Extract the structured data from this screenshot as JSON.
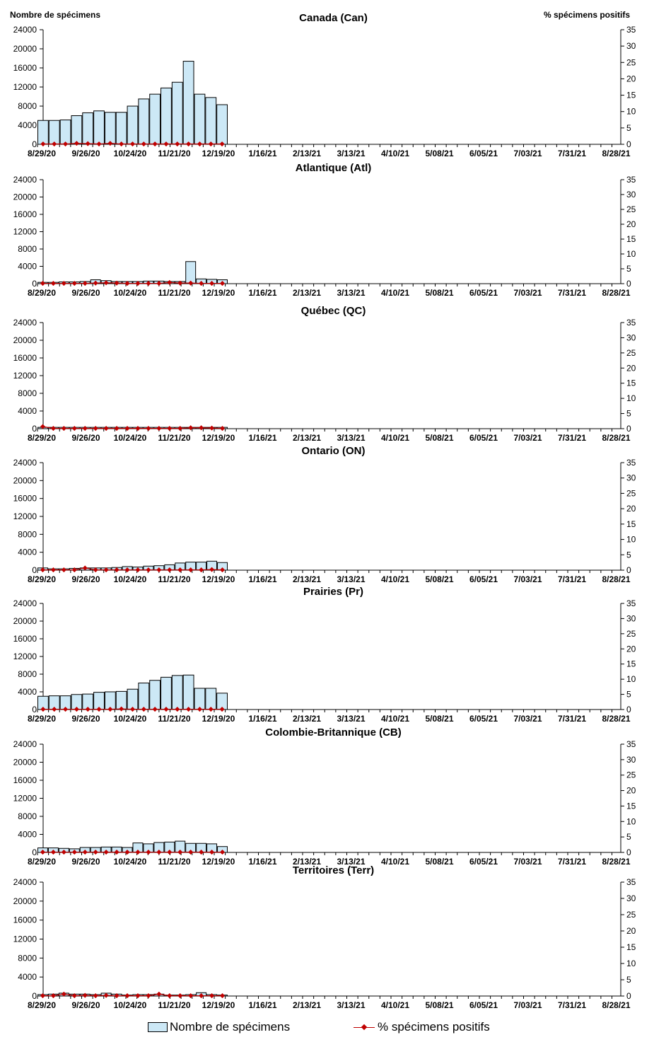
{
  "axis_labels": {
    "left": "Nombre de spécimens",
    "right": "% spécimens positifs"
  },
  "legend": {
    "bar_label": "Nombre de spécimens",
    "line_label": "% spécimens positifs"
  },
  "colors": {
    "bar_fill": "#cce8f6",
    "bar_stroke": "#000000",
    "line": "#c00000"
  },
  "chart_data": [
    {
      "type": "bar",
      "title": "Canada (Can)",
      "x_tick_labels": [
        "8/29/20",
        "9/26/20",
        "10/24/20",
        "11/21/20",
        "12/19/20",
        "1/16/21",
        "2/13/21",
        "3/13/21",
        "4/10/21",
        "5/08/21",
        "6/05/21",
        "7/03/21",
        "7/31/21",
        "8/28/21"
      ],
      "y_ticks": [
        0,
        4000,
        8000,
        12000,
        16000,
        20000,
        24000
      ],
      "y2_ticks": [
        0,
        5,
        10,
        15,
        20,
        25,
        30,
        35
      ],
      "ylim": [
        0,
        24000
      ],
      "y2lim": [
        0,
        35
      ],
      "series": [
        {
          "name": "Nombre de spécimens",
          "values": [
            5000,
            5000,
            5100,
            6000,
            6600,
            7000,
            6700,
            6700,
            8000,
            9500,
            10500,
            11800,
            13000,
            17400,
            10500,
            9800,
            8300
          ]
        },
        {
          "name": "% spécimens positifs",
          "values": [
            0.1,
            0.1,
            0.1,
            0.3,
            0.2,
            0.1,
            0.3,
            0.1,
            0.1,
            0.1,
            0.1,
            0.1,
            0.1,
            0.1,
            0.1,
            0.1,
            0.1
          ]
        }
      ]
    },
    {
      "type": "bar",
      "title": "Atlantique (Atl)",
      "x_tick_labels": [
        "8/29/20",
        "9/26/20",
        "10/24/20",
        "11/21/20",
        "12/19/20",
        "1/16/21",
        "2/13/21",
        "3/13/21",
        "4/10/21",
        "5/08/21",
        "6/05/21",
        "7/03/21",
        "7/31/21",
        "8/28/21"
      ],
      "y_ticks": [
        0,
        4000,
        8000,
        12000,
        16000,
        20000,
        24000
      ],
      "y2_ticks": [
        0,
        5,
        10,
        15,
        20,
        25,
        30,
        35
      ],
      "ylim": [
        0,
        24000
      ],
      "y2lim": [
        0,
        35
      ],
      "series": [
        {
          "name": "Nombre de spécimens",
          "values": [
            300,
            300,
            400,
            400,
            500,
            900,
            700,
            500,
            500,
            500,
            600,
            600,
            500,
            500,
            5100,
            1100,
            1000,
            900
          ]
        },
        {
          "name": "% spécimens positifs",
          "values": [
            0.1,
            0.1,
            0.1,
            0.1,
            0.1,
            0.2,
            0.3,
            0.2,
            0.1,
            0.1,
            0.1,
            0.1,
            0.4,
            0.2,
            0.2,
            0.1,
            0.1,
            0.1
          ]
        }
      ]
    },
    {
      "type": "bar",
      "title": "Québec (QC)",
      "x_tick_labels": [
        "8/29/20",
        "9/26/20",
        "10/24/20",
        "11/21/20",
        "12/19/20",
        "1/16/21",
        "2/13/21",
        "3/13/21",
        "4/10/21",
        "5/08/21",
        "6/05/21",
        "7/03/21",
        "7/31/21",
        "8/28/21"
      ],
      "y_ticks": [
        0,
        4000,
        8000,
        12000,
        16000,
        20000,
        24000
      ],
      "y2_ticks": [
        0,
        5,
        10,
        15,
        20,
        25,
        30,
        35
      ],
      "ylim": [
        0,
        24000
      ],
      "y2lim": [
        0,
        35
      ],
      "series": [
        {
          "name": "Nombre de spécimens",
          "values": [
            300,
            300,
            300,
            300,
            300,
            300,
            300,
            300,
            300,
            300,
            300,
            300,
            300,
            300,
            300,
            300,
            300,
            300
          ]
        },
        {
          "name": "% spécimens positifs",
          "values": [
            0.7,
            0.1,
            0.1,
            0.1,
            0.1,
            0.1,
            0.1,
            0.1,
            0.1,
            0.1,
            0.1,
            0.1,
            0.1,
            0.1,
            0.3,
            0.3,
            0.2,
            0.1
          ]
        }
      ]
    },
    {
      "type": "bar",
      "title": "Ontario (ON)",
      "x_tick_labels": [
        "8/29/20",
        "9/26/20",
        "10/24/20",
        "11/21/20",
        "12/19/20",
        "1/16/21",
        "2/13/21",
        "3/13/21",
        "4/10/21",
        "5/08/21",
        "6/05/21",
        "7/03/21",
        "7/31/21",
        "8/28/21"
      ],
      "y_ticks": [
        0,
        4000,
        8000,
        12000,
        16000,
        20000,
        24000
      ],
      "y2_ticks": [
        0,
        5,
        10,
        15,
        20,
        25,
        30,
        35
      ],
      "ylim": [
        0,
        24000
      ],
      "y2lim": [
        0,
        35
      ],
      "series": [
        {
          "name": "Nombre de spécimens",
          "values": [
            500,
            300,
            300,
            400,
            500,
            500,
            500,
            600,
            800,
            700,
            900,
            1000,
            1200,
            1600,
            1800,
            1800,
            2000,
            1700
          ]
        },
        {
          "name": "% spécimens positifs",
          "values": [
            0.1,
            0.1,
            0.1,
            0.1,
            0.7,
            0.1,
            0.1,
            0.1,
            0.1,
            0.1,
            0.1,
            0.1,
            0.1,
            0.1,
            0.1,
            0.1,
            0.2,
            0.1
          ]
        }
      ]
    },
    {
      "type": "bar",
      "title": "Prairies (Pr)",
      "x_tick_labels": [
        "8/29/20",
        "9/26/20",
        "10/24/20",
        "11/21/20",
        "12/19/20",
        "1/16/21",
        "2/13/21",
        "3/13/21",
        "4/10/21",
        "5/08/21",
        "6/05/21",
        "7/03/21",
        "7/31/21",
        "8/28/21"
      ],
      "y_ticks": [
        0,
        4000,
        8000,
        12000,
        16000,
        20000,
        24000
      ],
      "y2_ticks": [
        0,
        5,
        10,
        15,
        20,
        25,
        30,
        35
      ],
      "ylim": [
        0,
        24000
      ],
      "y2lim": [
        0,
        35
      ],
      "series": [
        {
          "name": "Nombre de spécimens",
          "values": [
            3000,
            3100,
            3100,
            3400,
            3500,
            3900,
            4000,
            4100,
            4600,
            6000,
            6600,
            7300,
            7700,
            7800,
            4800,
            4800,
            3700
          ]
        },
        {
          "name": "% spécimens positifs",
          "values": [
            0.1,
            0.1,
            0.1,
            0.1,
            0.1,
            0.1,
            0.1,
            0.2,
            0.1,
            0.1,
            0.1,
            0.1,
            0.1,
            0.1,
            0.1,
            0.1,
            0.1
          ]
        }
      ]
    },
    {
      "type": "bar",
      "title": "Colombie-Britannique (CB)",
      "x_tick_labels": [
        "8/29/20",
        "9/26/20",
        "10/24/20",
        "11/21/20",
        "12/19/20",
        "1/16/21",
        "2/13/21",
        "3/13/21",
        "4/10/21",
        "5/08/21",
        "6/05/21",
        "7/03/21",
        "7/31/21",
        "8/28/21"
      ],
      "y_ticks": [
        0,
        4000,
        8000,
        12000,
        16000,
        20000,
        24000
      ],
      "y2_ticks": [
        0,
        5,
        10,
        15,
        20,
        25,
        30,
        35
      ],
      "ylim": [
        0,
        24000
      ],
      "y2lim": [
        0,
        35
      ],
      "series": [
        {
          "name": "Nombre de spécimens",
          "values": [
            1000,
            1000,
            900,
            800,
            1100,
            1100,
            1200,
            1200,
            1100,
            2100,
            1900,
            2200,
            2300,
            2500,
            2000,
            2000,
            1900,
            1300
          ]
        },
        {
          "name": "% spécimens positifs",
          "values": [
            0.1,
            0.1,
            0.1,
            0.1,
            0.1,
            0.1,
            0.1,
            0.1,
            0.1,
            0.1,
            0.1,
            0.1,
            0.1,
            0.1,
            0.1,
            0.1,
            0.1,
            0.1
          ]
        }
      ]
    },
    {
      "type": "bar",
      "title": "Territoires (Terr)",
      "x_tick_labels": [
        "8/29/20",
        "9/26/20",
        "10/24/20",
        "11/21/20",
        "12/19/20",
        "1/16/21",
        "2/13/21",
        "3/13/21",
        "4/10/21",
        "5/08/21",
        "6/05/21",
        "7/03/21",
        "7/31/21",
        "8/28/21"
      ],
      "y_ticks": [
        0,
        4000,
        8000,
        12000,
        16000,
        20000,
        24000
      ],
      "y2_ticks": [
        0,
        5,
        10,
        15,
        20,
        25,
        30,
        35
      ],
      "ylim": [
        0,
        24000
      ],
      "y2lim": [
        0,
        35
      ],
      "series": [
        {
          "name": "Nombre de spécimens",
          "values": [
            300,
            400,
            600,
            400,
            400,
            300,
            600,
            400,
            200,
            300,
            300,
            400,
            200,
            200,
            300,
            700,
            300,
            200
          ]
        },
        {
          "name": "% spécimens positifs",
          "values": [
            0.1,
            0.1,
            0.6,
            0.1,
            0.2,
            0.1,
            0.2,
            0.1,
            0.1,
            0.1,
            0.1,
            0.6,
            0.1,
            0.1,
            0.1,
            0.1,
            0.1,
            0.1
          ]
        }
      ]
    }
  ]
}
